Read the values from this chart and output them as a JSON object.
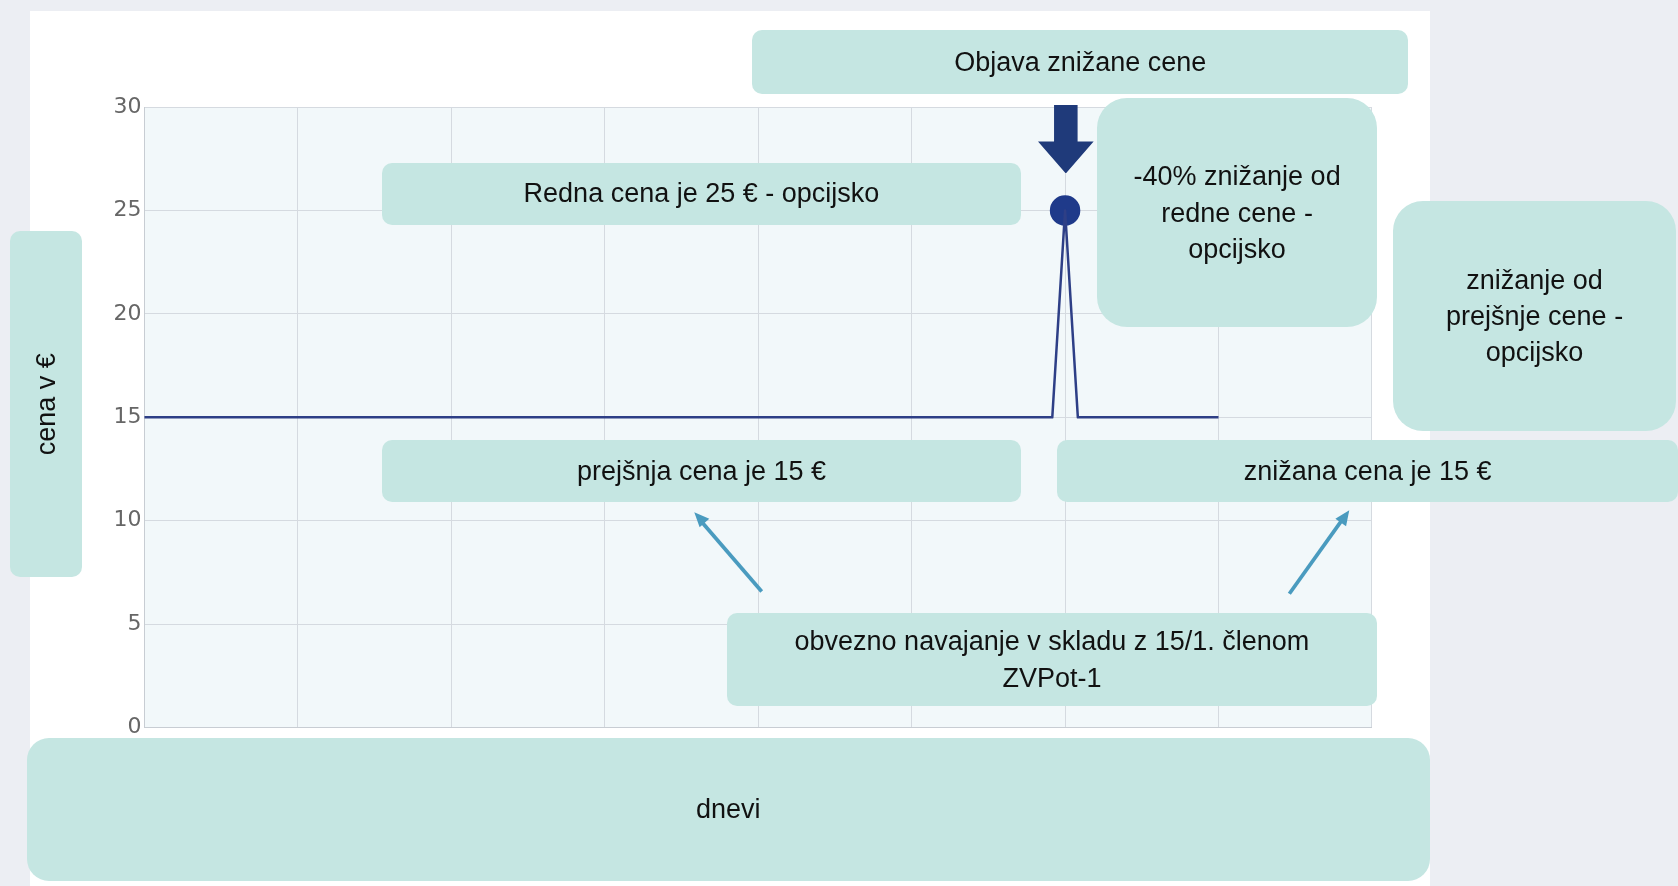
{
  "chart_data": {
    "type": "line",
    "xlabel": "dnevi",
    "ylabel": "cena v €",
    "categories": [
      null,
      null,
      null,
      null,
      null,
      null,
      null,
      null,
      null,
      null,
      null,
      null,
      null,
      null,
      null,
      null,
      null,
      null,
      null,
      null,
      null,
      null,
      null,
      null,
      null,
      null,
      null,
      null,
      null,
      null,
      null,
      null,
      null,
      null,
      null,
      null,
      null,
      null,
      null,
      null,
      null,
      null,
      null,
      null,
      null,
      null,
      null,
      null,
      null,
      null,
      null,
      null,
      null,
      null,
      null,
      null,
      null,
      null,
      null,
      null,
      null,
      null,
      null,
      null,
      null,
      null,
      null,
      null,
      null,
      null,
      null,
      null,
      null,
      null,
      null,
      null,
      null,
      null,
      null,
      null,
      null,
      null,
      null,
      null,
      null,
      null,
      null,
      null,
      null,
      null,
      null,
      null,
      null,
      null,
      null,
      null,
      null
    ],
    "ylim": [
      0,
      30
    ],
    "yticks": [
      0,
      5,
      10,
      15,
      20,
      25,
      30
    ],
    "grid": true,
    "tick_labels": "y",
    "series": [
      {
        "color": "#2e3f86",
        "values": [
          15,
          15,
          15,
          15,
          15,
          15,
          15,
          15,
          15,
          15,
          15,
          15,
          15,
          15,
          15,
          15,
          15,
          15,
          15,
          15,
          15,
          15,
          15,
          15,
          15,
          15,
          15,
          15,
          15,
          15,
          15,
          15,
          15,
          15,
          15,
          15,
          15,
          15,
          15,
          15,
          15,
          15,
          15,
          15,
          15,
          15,
          15,
          15,
          15,
          15,
          15,
          15,
          15,
          15,
          15,
          15,
          15,
          15,
          15,
          15,
          15,
          15,
          15,
          15,
          15,
          15,
          15,
          15,
          15,
          15,
          15,
          15,
          25,
          15,
          15,
          15,
          15,
          15,
          15,
          15,
          15,
          15,
          15,
          15,
          15,
          null,
          null,
          null,
          null,
          null,
          null,
          null,
          null,
          null,
          null,
          null,
          null
        ],
        "marker": "none",
        "line_style": "solid"
      },
      {
        "type": "scatter",
        "color": "#1f3a8a",
        "values": [
          null,
          null,
          null,
          null,
          null,
          null,
          null,
          null,
          null,
          null,
          null,
          null,
          null,
          null,
          null,
          null,
          null,
          null,
          null,
          null,
          null,
          null,
          null,
          null,
          null,
          null,
          null,
          null,
          null,
          null,
          null,
          null,
          null,
          null,
          null,
          null,
          null,
          null,
          null,
          null,
          null,
          null,
          null,
          null,
          null,
          null,
          null,
          null,
          null,
          null,
          null,
          null,
          null,
          null,
          null,
          null,
          null,
          null,
          null,
          null,
          null,
          null,
          null,
          null,
          null,
          null,
          null,
          null,
          null,
          null,
          null,
          null,
          25,
          null,
          null,
          null,
          null,
          null,
          null,
          null,
          null,
          null,
          null,
          null,
          null,
          null,
          null,
          null,
          null,
          null,
          null,
          null,
          null,
          null,
          null,
          null,
          null
        ],
        "marker": "circle"
      }
    ],
    "annotations": [
      "Objava znižane cene",
      "Redna cena je 25 € - opcijsko",
      "-40% znižanje od redne cene - opcijsko",
      "znižanje od prejšnje cene - opcijsko",
      "prejšnja cena je 15 €",
      "znižana cena je 15 €",
      "obvezno navajanje v skladu z 15/1. členom ZVPot-1"
    ]
  }
}
